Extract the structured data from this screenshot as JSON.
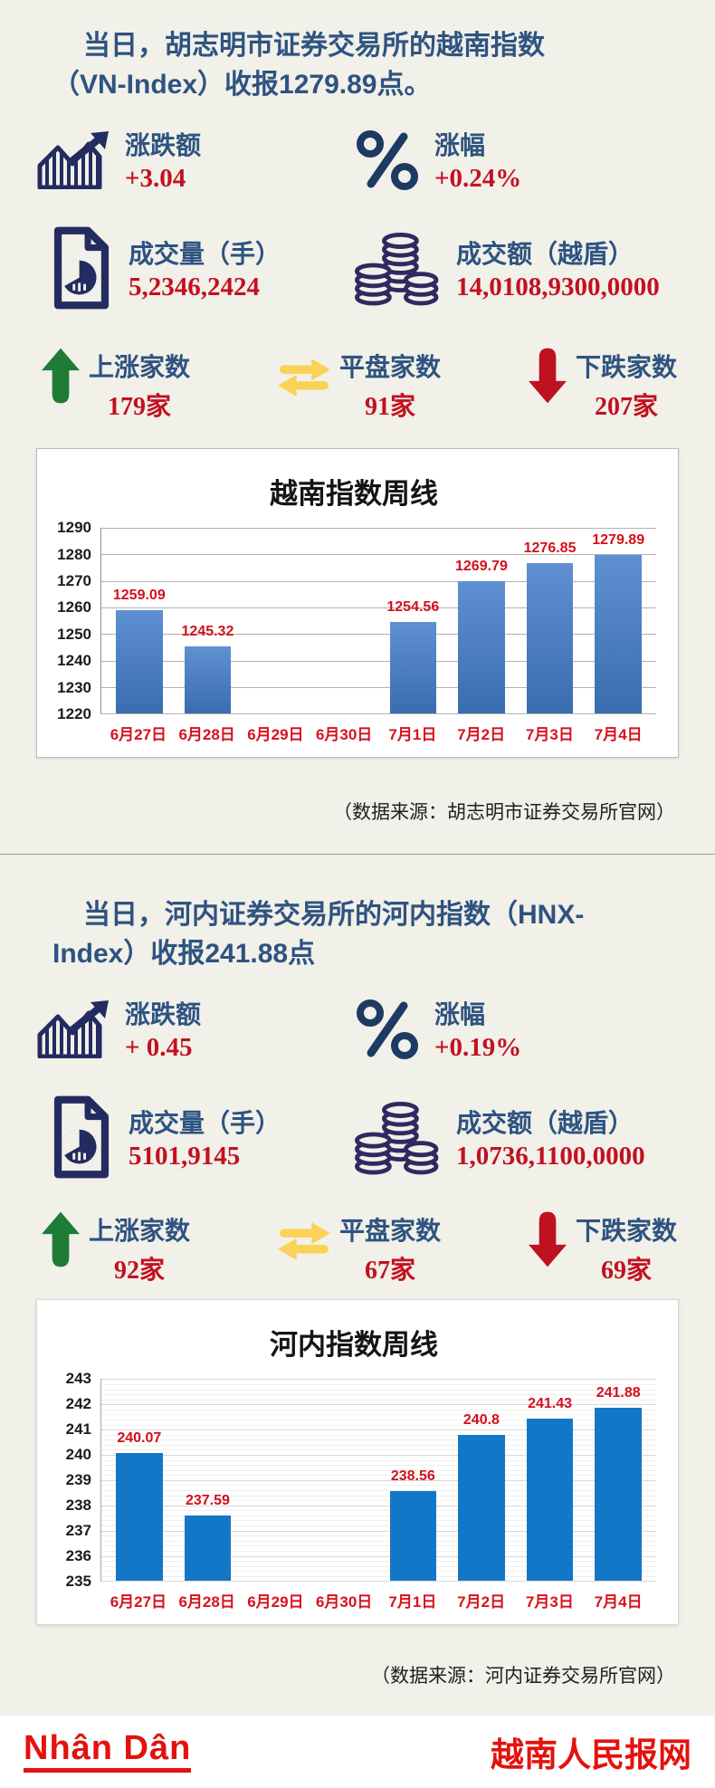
{
  "palette": {
    "background": "#f1f0e9",
    "heading_blue": "#2e5380",
    "icon_navy": "#232c60",
    "value_red": "#c21120",
    "chart_label_red": "#d40f1c",
    "up_green": "#1e7c34",
    "flat_yellow": "#f9d256",
    "down_red": "#bf1220",
    "footer_red": "#e3120e",
    "bar_blue_gradient_top": "#5e90d2",
    "bar_blue_gradient_bottom": "#3a6cb0",
    "bar_flat_blue": "#1377c8"
  },
  "section1": {
    "title_line1": "当日，胡志明市证券交易所的越南指数",
    "title_line2": "（VN-Index）收报1279.89点。",
    "stats": [
      {
        "icon": "trend-chart-icon",
        "label": "涨跌额",
        "value": "+3.04"
      },
      {
        "icon": "percent-icon",
        "label": "涨幅",
        "value": "+0.24%"
      },
      {
        "icon": "volume-document-icon",
        "label": "成交量（手）",
        "value": "5,2346,2424"
      },
      {
        "icon": "coins-icon",
        "label": "成交额（越盾）",
        "value": "14,0108,9300,0000"
      }
    ],
    "counts": [
      {
        "icon": "up-arrow-icon",
        "label": "上涨家数",
        "value": "179家"
      },
      {
        "icon": "flat-arrows-icon",
        "label": "平盘家数",
        "value": "91家"
      },
      {
        "icon": "down-arrow-icon",
        "label": "下跌家数",
        "value": "207家"
      }
    ],
    "source": "（数据来源：胡志明市证券交易所官网）"
  },
  "section2": {
    "title_line1": "当日，河内证券交易所的河内指数（HNX-",
    "title_line2": "Index）收报241.88点",
    "stats": [
      {
        "icon": "trend-chart-icon",
        "label": "涨跌额",
        "value": "+ 0.45"
      },
      {
        "icon": "percent-icon",
        "label": "涨幅",
        "value": "+0.19%"
      },
      {
        "icon": "volume-document-icon",
        "label": "成交量（手）",
        "value": "5101,9145"
      },
      {
        "icon": "coins-icon",
        "label": "成交额（越盾）",
        "value": "1,0736,1100,0000"
      }
    ],
    "counts": [
      {
        "icon": "up-arrow-icon",
        "label": "上涨家数",
        "value": "92家"
      },
      {
        "icon": "flat-arrows-icon",
        "label": "平盘家数",
        "value": "67家"
      },
      {
        "icon": "down-arrow-icon",
        "label": "下跌家数",
        "value": "69家"
      }
    ],
    "source": "（数据来源：河内证券交易所官网）"
  },
  "chart_data": [
    {
      "type": "bar",
      "title": "越南指数周线",
      "categories": [
        "6月27日",
        "6月28日",
        "6月29日",
        "6月30日",
        "7月1日",
        "7月2日",
        "7月3日",
        "7月4日"
      ],
      "values": [
        1259.09,
        1245.32,
        null,
        null,
        1254.56,
        1269.79,
        1276.85,
        1279.89
      ],
      "ylim": [
        1220,
        1290
      ],
      "ytick_step": 10,
      "grid": "major-horizontal",
      "legend": "none",
      "bar_gradient": [
        "#5e90d2",
        "#3a6cb0"
      ],
      "value_label_color": "#d40f1c"
    },
    {
      "type": "bar",
      "title": "河内指数周线",
      "categories": [
        "6月27日",
        "6月28日",
        "6月29日",
        "6月30日",
        "7月1日",
        "7月2日",
        "7月3日",
        "7月4日"
      ],
      "values": [
        240.07,
        237.59,
        null,
        null,
        238.56,
        240.8,
        241.43,
        241.88
      ],
      "ylim": [
        235,
        243
      ],
      "ytick_step": 1,
      "minor_step": 0.2,
      "grid": "major+minor-horizontal",
      "legend": "none",
      "bar_color": "#1377c8",
      "value_label_color": "#d40f1c"
    }
  ],
  "footer": {
    "logo_text": "Nhân Dân",
    "site_name": "越南人民报网"
  }
}
